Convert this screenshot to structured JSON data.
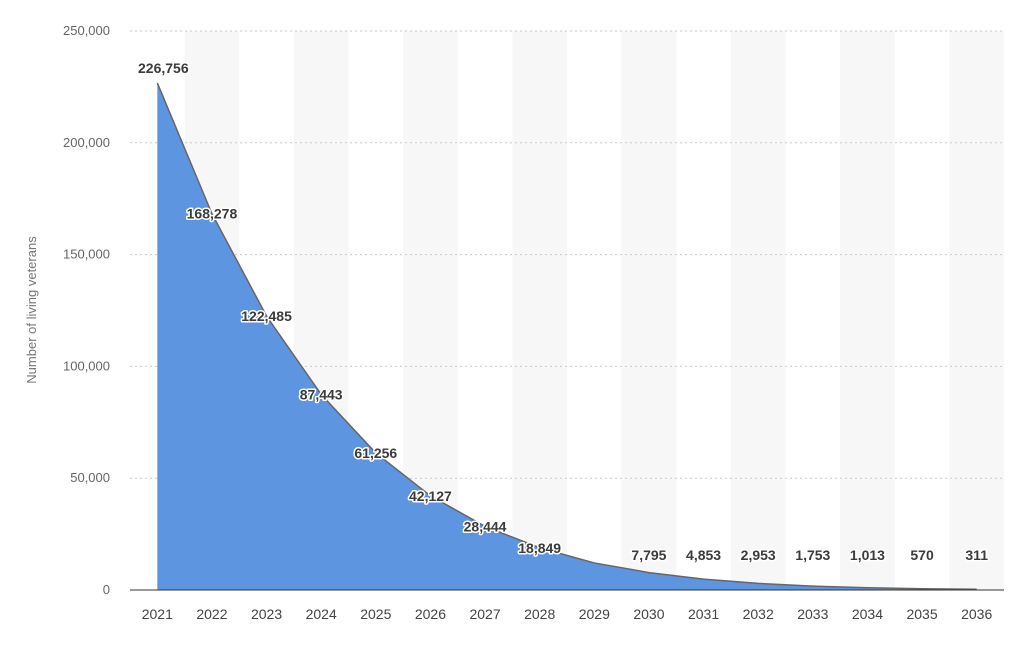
{
  "chart_data": {
    "type": "area",
    "ylabel": "Number of living veterans",
    "xlabel": "",
    "categories": [
      "2021",
      "2022",
      "2023",
      "2024",
      "2025",
      "2026",
      "2027",
      "2028",
      "2029",
      "2030",
      "2031",
      "2032",
      "2033",
      "2034",
      "2035",
      "2036"
    ],
    "values": [
      226756,
      168278,
      122485,
      87443,
      61256,
      42127,
      28444,
      18849,
      12100,
      7795,
      4853,
      2953,
      1753,
      1013,
      570,
      311
    ],
    "data_labels": [
      "226,756",
      "168,278",
      "122,485",
      "87,443",
      "61,256",
      "42,127",
      "28,444",
      "18,849",
      "",
      "7,795",
      "4,853",
      "2,953",
      "1,753",
      "1,013",
      "570",
      "311"
    ],
    "ylim": [
      0,
      250000
    ],
    "yticks": [
      0,
      50000,
      100000,
      150000,
      200000,
      250000
    ],
    "ytick_labels": [
      "0",
      "50,000",
      "100,000",
      "150,000",
      "200,000",
      "250,000"
    ],
    "grid": true,
    "colors": {
      "area": "#5e95e0",
      "line": "#666666",
      "band": "#f7f7f7"
    }
  }
}
